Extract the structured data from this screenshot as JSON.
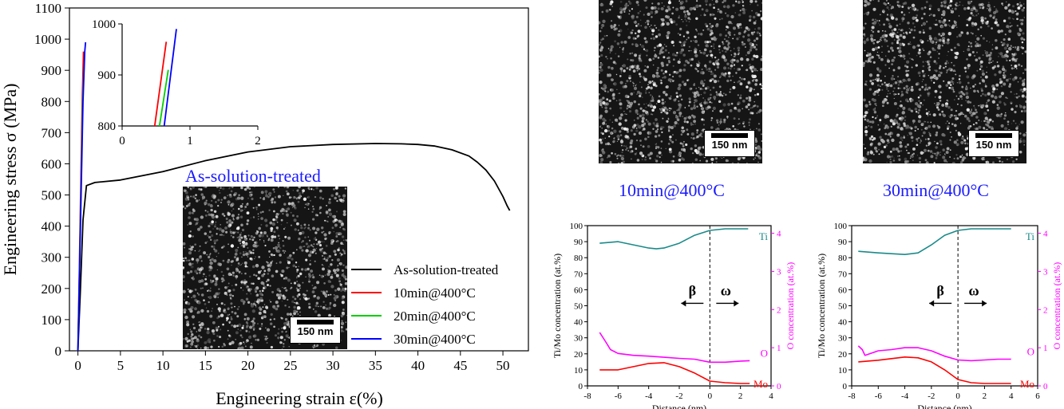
{
  "colors": {
    "black": "#000000",
    "red": "#ff0000",
    "green": "#00d000",
    "blue": "#0000ff",
    "teal": "#1a8a8a",
    "magenta": "#ff00ff",
    "caption_blue": "#1a1aff"
  },
  "chart_data": [
    {
      "type": "line",
      "xlabel": "Engineering strain ε(%)",
      "ylabel": "Engineering stress σ (MPa)",
      "xlim": [
        -1,
        53
      ],
      "ylim": [
        0,
        1100
      ],
      "xticks": [
        0,
        5,
        10,
        15,
        20,
        25,
        30,
        35,
        40,
        45,
        50
      ],
      "yticks": [
        0,
        100,
        200,
        300,
        400,
        500,
        600,
        700,
        800,
        900,
        1000,
        1100
      ],
      "legend": [
        "As-solution-treated",
        "10min@400°C",
        "20min@400°C",
        "30min@400°C"
      ],
      "series": [
        {
          "name": "As-solution-treated",
          "color": "#000000",
          "x": [
            0,
            0.3,
            0.6,
            1,
            2,
            5,
            10,
            15,
            20,
            25,
            30,
            35,
            38,
            40,
            42,
            44,
            46,
            47,
            48,
            49,
            50,
            50.5,
            50.8
          ],
          "y": [
            0,
            200,
            420,
            530,
            540,
            548,
            575,
            610,
            638,
            655,
            662,
            665,
            664,
            662,
            657,
            645,
            625,
            605,
            580,
            545,
            495,
            465,
            450
          ]
        },
        {
          "name": "10min@400°C",
          "color": "#ff0000",
          "x": [
            0,
            0.25,
            0.5,
            0.65
          ],
          "y": [
            0,
            400,
            800,
            960
          ]
        },
        {
          "name": "20min@400°C",
          "color": "#00d000",
          "x": [
            0,
            0.28,
            0.56,
            0.72
          ],
          "y": [
            0,
            400,
            800,
            910
          ]
        },
        {
          "name": "30min@400°C",
          "color": "#0000ff",
          "x": [
            0,
            0.3,
            0.6,
            0.8,
            0.9
          ],
          "y": [
            0,
            400,
            800,
            960,
            990
          ]
        }
      ]
    },
    {
      "type": "line",
      "role": "inset",
      "xlim": [
        0,
        2
      ],
      "ylim": [
        800,
        1000
      ],
      "xticks": [
        0,
        1,
        2
      ],
      "yticks": [
        800,
        900,
        1000
      ],
      "series": [
        {
          "name": "10min@400°C",
          "color": "#ff0000",
          "x": [
            0.48,
            0.65
          ],
          "y": [
            800,
            965
          ]
        },
        {
          "name": "20min@400°C",
          "color": "#00d000",
          "x": [
            0.55,
            0.68
          ],
          "y": [
            800,
            910
          ]
        },
        {
          "name": "30min@400°C",
          "color": "#0000ff",
          "x": [
            0.62,
            0.8
          ],
          "y": [
            800,
            990
          ]
        }
      ]
    },
    {
      "type": "line",
      "role": "profile-10min",
      "xlabel": "Distance (nm)",
      "ylabel": "Ti/Mo concentration (at.%)",
      "ylabel_right": "O concentration (at.%)",
      "xlim": [
        -8,
        4
      ],
      "ylim": [
        0,
        100
      ],
      "ylim_right": [
        0,
        4.2
      ],
      "xticks": [
        -8,
        -6,
        -4,
        -2,
        0,
        2,
        4
      ],
      "yticks": [
        0,
        10,
        20,
        30,
        40,
        50,
        60,
        70,
        80,
        90,
        100
      ],
      "yticks_right": [
        0,
        1,
        2,
        3,
        4
      ],
      "series": [
        {
          "name": "Ti",
          "color": "#1a8a8a",
          "x": [
            -7.2,
            -6,
            -5,
            -4,
            -3.5,
            -3,
            -2,
            -1,
            0,
            1,
            2.5
          ],
          "y": [
            89,
            90,
            88,
            86,
            85.5,
            86,
            89,
            94,
            97,
            98,
            98
          ]
        },
        {
          "name": "O",
          "color": "#ff00ff",
          "x": [
            -7.2,
            -6.8,
            -6.5,
            -6,
            -5,
            -4,
            -3,
            -2,
            -1,
            0,
            1,
            2,
            2.6
          ],
          "y": [
            1.4,
            1.15,
            0.95,
            0.85,
            0.8,
            0.78,
            0.75,
            0.72,
            0.7,
            0.62,
            0.62,
            0.65,
            0.66
          ]
        },
        {
          "name": "Mo",
          "color": "#ff0000",
          "x": [
            -7.2,
            -6,
            -5,
            -4,
            -3,
            -2,
            -1,
            0,
            1,
            2,
            2.6
          ],
          "y": [
            10,
            10,
            12,
            14,
            14.5,
            12,
            8,
            3,
            2,
            1.5,
            1.5
          ]
        }
      ],
      "markers": {
        "beta": "β",
        "omega": "ω"
      }
    },
    {
      "type": "line",
      "role": "profile-30min",
      "xlabel": "Distance (nm)",
      "ylabel": "Ti/Mo concentration (at.%)",
      "ylabel_right": "O concentration (at.%)",
      "xlim": [
        -8,
        6
      ],
      "ylim": [
        0,
        100
      ],
      "ylim_right": [
        0,
        4.2
      ],
      "xticks": [
        -8,
        -6,
        -4,
        -2,
        0,
        2,
        4,
        6
      ],
      "yticks": [
        0,
        10,
        20,
        30,
        40,
        50,
        60,
        70,
        80,
        90,
        100
      ],
      "yticks_right": [
        0,
        1,
        2,
        3,
        4
      ],
      "series": [
        {
          "name": "Ti",
          "color": "#1a8a8a",
          "x": [
            -7.5,
            -6,
            -5,
            -4,
            -3,
            -2,
            -1,
            0,
            1,
            2,
            3,
            4
          ],
          "y": [
            84,
            83,
            82.5,
            82,
            83,
            88,
            94,
            97,
            98,
            98,
            98,
            98
          ]
        },
        {
          "name": "O",
          "color": "#ff00ff",
          "x": [
            -7.5,
            -7.2,
            -7,
            -6,
            -5,
            -4,
            -3,
            -2,
            -1,
            0,
            1,
            2,
            3,
            4
          ],
          "y": [
            1.05,
            0.95,
            0.8,
            0.92,
            0.95,
            1.0,
            1.0,
            0.92,
            0.78,
            0.68,
            0.66,
            0.68,
            0.7,
            0.7
          ]
        },
        {
          "name": "Mo",
          "color": "#ff0000",
          "x": [
            -7.5,
            -6,
            -5,
            -4,
            -3,
            -2,
            -1,
            0,
            1,
            2,
            3,
            4
          ],
          "y": [
            15,
            16,
            17,
            18,
            17.5,
            15,
            10,
            4,
            2,
            1.5,
            1.5,
            1.5
          ]
        }
      ],
      "markers": {
        "beta": "β",
        "omega": "ω"
      }
    }
  ],
  "labels": {
    "main_xlabel": "Engineering strain ε(%)",
    "main_ylabel": "Engineering stress σ (MPa)",
    "inset_caption": "As-solution-treated",
    "scale_bar": "150 nm",
    "caption_10": "10min@400°C",
    "caption_30": "30min@400°C",
    "profile_xlabel": "Distance (nm)",
    "profile_ylabel_left": "Ti/Mo concentration (at.%)",
    "profile_ylabel_right": "O concentration (at.%)",
    "ti": "Ti",
    "o": "O",
    "mo": "Mo",
    "beta": "β",
    "omega": "ω",
    "legend": [
      "As-solution-treated",
      "10min@400°C",
      "20min@400°C",
      "30min@400°C"
    ]
  }
}
